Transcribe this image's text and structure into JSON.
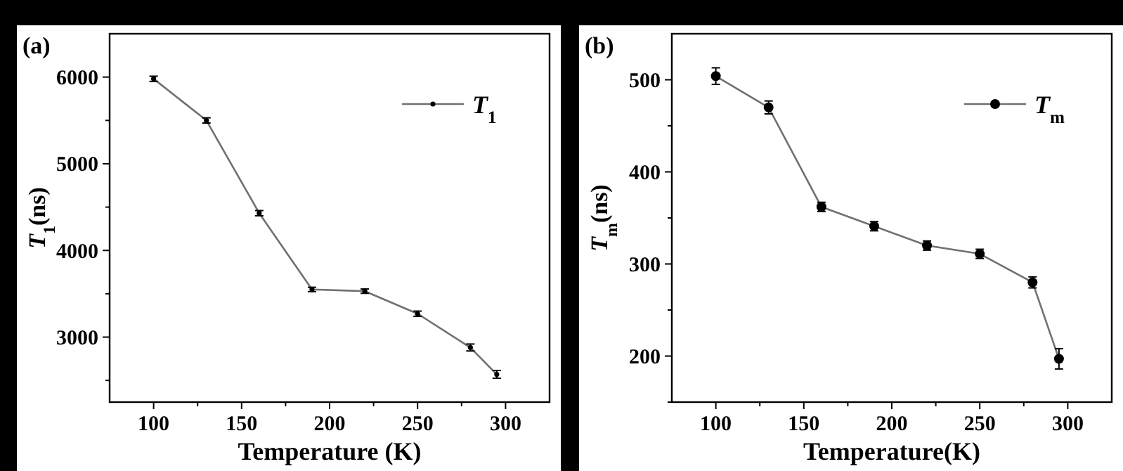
{
  "chart_data": [
    {
      "type": "line",
      "title": "(a)",
      "xlabel": "Temperature (K)",
      "ylabel": "T$_{1}$(ns)",
      "x": [
        100,
        130,
        160,
        190,
        220,
        250,
        280,
        295
      ],
      "series": [
        {
          "name": "T$_{1}$",
          "color": "#707070",
          "values": [
            5980,
            5500,
            4430,
            3550,
            3530,
            3270,
            2880,
            2570
          ],
          "errors": [
            30,
            30,
            30,
            25,
            25,
            30,
            40,
            45
          ]
        }
      ],
      "xlim": [
        75,
        325
      ],
      "xticks": [
        100,
        {
          "value": 125,
          "label": null
        },
        150,
        {
          "value": 175,
          "label": null
        },
        200,
        {
          "value": 225,
          "label": null
        },
        250,
        {
          "value": 275,
          "label": null
        },
        300
      ],
      "ylim": [
        2250,
        6500
      ],
      "yticks": [
        {
          "value": 2500,
          "label": null
        },
        3000,
        {
          "value": 3500,
          "label": null
        },
        4000,
        {
          "value": 4500,
          "label": null
        },
        5000,
        {
          "value": 5500,
          "label": null
        },
        6000
      ],
      "marker": "circle",
      "legend": "top right",
      "grid": false
    },
    {
      "type": "line",
      "title": "(b)",
      "xlabel": "Temperature(K)",
      "ylabel": "T$_{m}$(ns)",
      "x": [
        100,
        130,
        160,
        190,
        220,
        250,
        280,
        295
      ],
      "series": [
        {
          "name": "T$_{m}$",
          "color": "#707070",
          "values": [
            504,
            470,
            362,
            341,
            320,
            311,
            280,
            197
          ],
          "errors": [
            9,
            7,
            5,
            5,
            5,
            5,
            6,
            11
          ]
        }
      ],
      "xlim": [
        75,
        325
      ],
      "xticks": [
        100,
        {
          "value": 125,
          "label": null
        },
        150,
        {
          "value": 175,
          "label": null
        },
        200,
        {
          "value": 225,
          "label": null
        },
        250,
        {
          "value": 275,
          "label": null
        },
        300
      ],
      "ylim": [
        150,
        550
      ],
      "yticks": [
        {
          "value": 150,
          "label": null
        },
        200,
        {
          "value": 250,
          "label": null
        },
        300,
        {
          "value": 350,
          "label": null
        },
        400,
        {
          "value": 450,
          "label": null
        },
        500
      ],
      "marker": "circle",
      "legend": "top right",
      "grid": false
    }
  ]
}
